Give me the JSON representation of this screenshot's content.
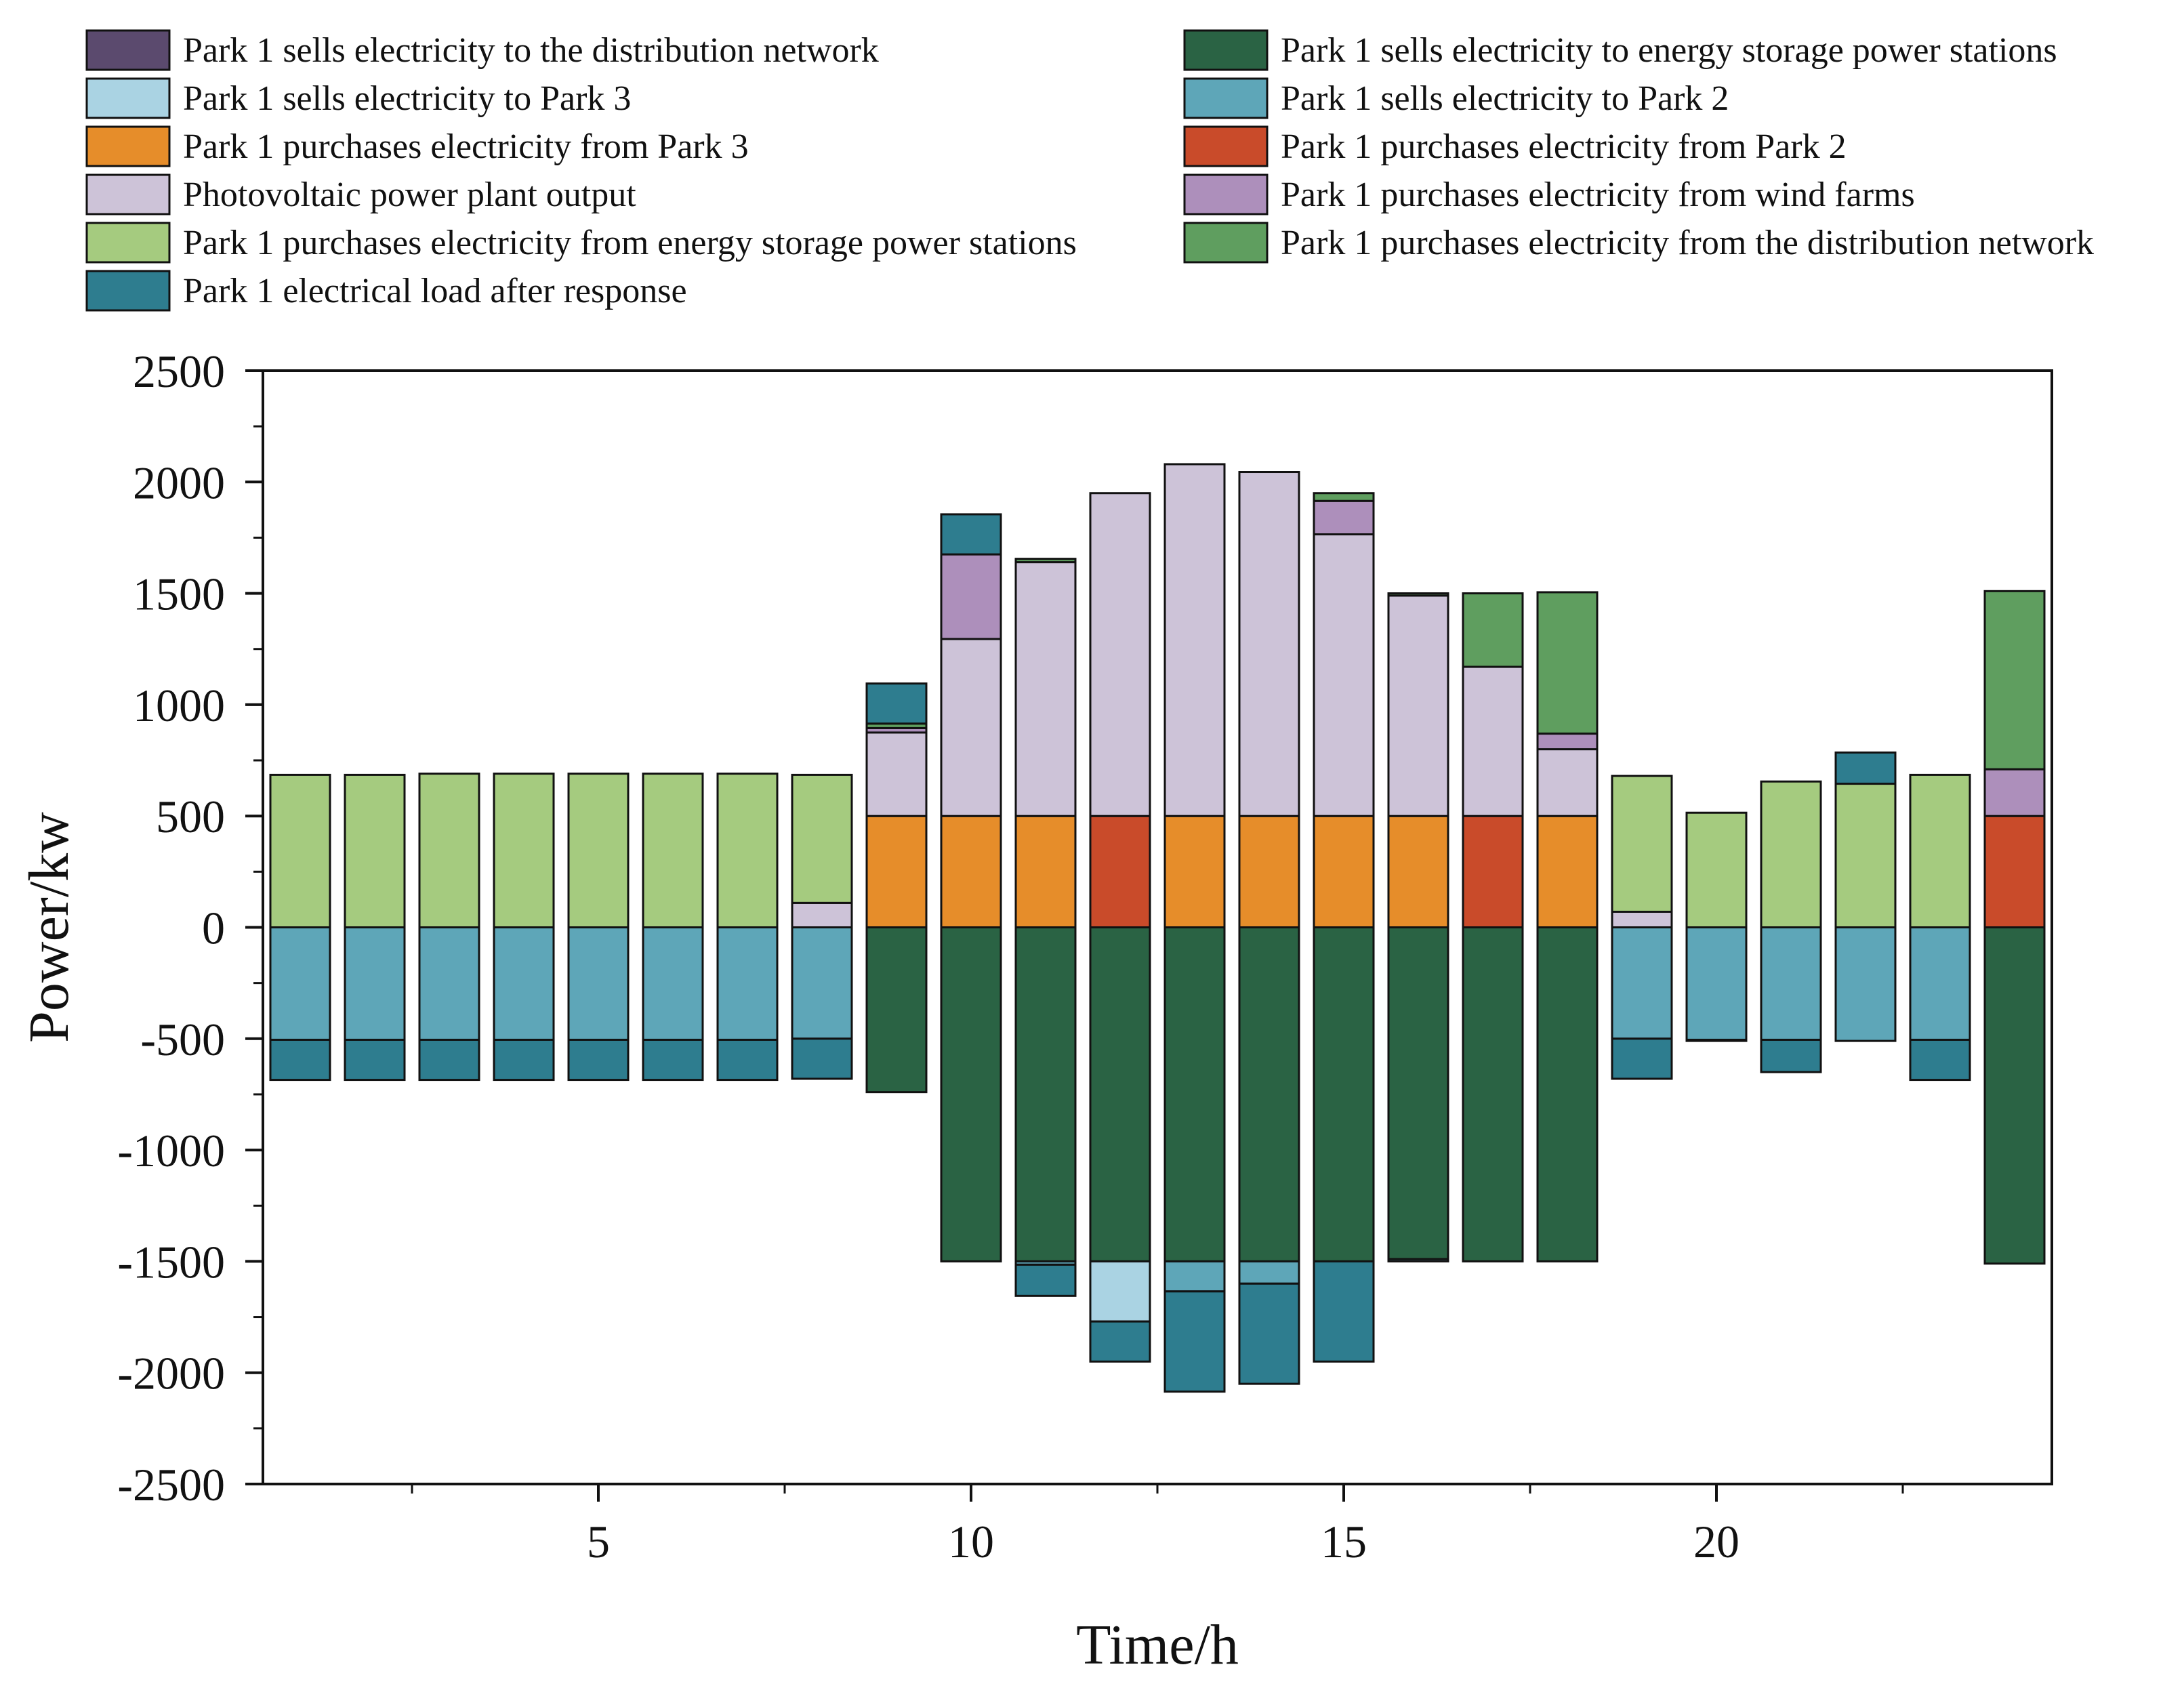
{
  "chart_data": {
    "type": "bar",
    "stacked": true,
    "title": "",
    "xlabel": "Time/h",
    "ylabel": "Power/kw",
    "ylim": [
      -2500,
      2500
    ],
    "yticks": [
      2500,
      2000,
      1500,
      1000,
      500,
      0,
      -500,
      -1000,
      -1500,
      -2000,
      -2500
    ],
    "xticks": [
      5,
      10,
      15,
      20
    ],
    "x": [
      1,
      2,
      3,
      4,
      5,
      6,
      7,
      8,
      9,
      10,
      11,
      12,
      13,
      14,
      15,
      16,
      17,
      18,
      19,
      20,
      21,
      22,
      23,
      24
    ],
    "legend_position": "top",
    "series": [
      {
        "name": "Park 1 sells electricity to the distribution network",
        "color": "#5b4a6e",
        "values": [
          0,
          0,
          0,
          0,
          0,
          0,
          0,
          0,
          0,
          0,
          0,
          0,
          0,
          0,
          0,
          0,
          0,
          0,
          0,
          0,
          0,
          0,
          0,
          0
        ]
      },
      {
        "name": "Park 1 sells electricity to energy storage power stations",
        "color": "#2a6344",
        "values": [
          0,
          0,
          0,
          0,
          0,
          0,
          0,
          0,
          -740,
          -1500,
          -1500,
          -1500,
          -1500,
          -1500,
          -1500,
          -1490,
          -1500,
          -1500,
          0,
          0,
          0,
          0,
          0,
          -1510
        ]
      },
      {
        "name": "Park 1 sells electricity to Park 3",
        "color": "#aad3e3",
        "values": [
          0,
          0,
          0,
          0,
          0,
          0,
          0,
          0,
          0,
          0,
          0,
          -270,
          0,
          0,
          0,
          0,
          0,
          0,
          0,
          0,
          0,
          0,
          0,
          0
        ]
      },
      {
        "name": "Park 1 sells electricity to Park 2",
        "color": "#5ea6b8",
        "values": [
          -505,
          -505,
          -505,
          -505,
          -505,
          -505,
          -505,
          -500,
          0,
          0,
          -15,
          0,
          -135,
          -100,
          0,
          -10,
          0,
          0,
          -500,
          -505,
          -505,
          -510,
          -505,
          0
        ]
      },
      {
        "name": "Park 1 purchases electricity from Park 3",
        "color": "#e68d2a",
        "values": [
          0,
          0,
          0,
          0,
          0,
          0,
          0,
          0,
          500,
          500,
          500,
          0,
          500,
          500,
          500,
          500,
          0,
          500,
          0,
          0,
          0,
          0,
          0,
          0
        ]
      },
      {
        "name": "Park 1 purchases electricity from Park 2",
        "color": "#c94b2a",
        "values": [
          0,
          0,
          0,
          0,
          0,
          0,
          0,
          0,
          0,
          0,
          0,
          500,
          0,
          0,
          0,
          0,
          500,
          0,
          0,
          0,
          0,
          0,
          0,
          500
        ]
      },
      {
        "name": "Photovoltaic power plant output",
        "color": "#cdc3d8",
        "values": [
          0,
          0,
          0,
          0,
          0,
          0,
          0,
          110,
          375,
          795,
          1140,
          1450,
          1580,
          1545,
          1265,
          990,
          670,
          300,
          70,
          0,
          0,
          0,
          0,
          0
        ]
      },
      {
        "name": "Park 1 purchases electricity from wind farms",
        "color": "#ad8fbb",
        "values": [
          0,
          0,
          0,
          0,
          0,
          0,
          0,
          0,
          20,
          380,
          0,
          0,
          0,
          0,
          150,
          0,
          0,
          70,
          0,
          0,
          0,
          0,
          0,
          210
        ]
      },
      {
        "name": "Park 1 purchases electricity from energy storage power stations",
        "color": "#a5cb7f",
        "values": [
          685,
          685,
          690,
          690,
          690,
          690,
          690,
          575,
          0,
          0,
          0,
          0,
          0,
          0,
          0,
          0,
          0,
          0,
          610,
          515,
          655,
          645,
          685,
          0
        ]
      },
      {
        "name": "Park 1 purchases electricity from the distribution network",
        "color": "#5f9e5f",
        "values": [
          0,
          0,
          0,
          0,
          0,
          0,
          0,
          0,
          20,
          0,
          15,
          0,
          0,
          0,
          35,
          10,
          330,
          635,
          0,
          0,
          0,
          0,
          0,
          800
        ]
      },
      {
        "name": "Park 1 electrical load after response",
        "color": "#2e7d8f",
        "values": [
          -180,
          -180,
          -180,
          -180,
          -180,
          -180,
          -180,
          -180,
          180,
          180,
          -140,
          -180,
          -450,
          -450,
          -450,
          0,
          0,
          0,
          -180,
          -5,
          -145,
          140,
          -180,
          0
        ]
      }
    ]
  }
}
